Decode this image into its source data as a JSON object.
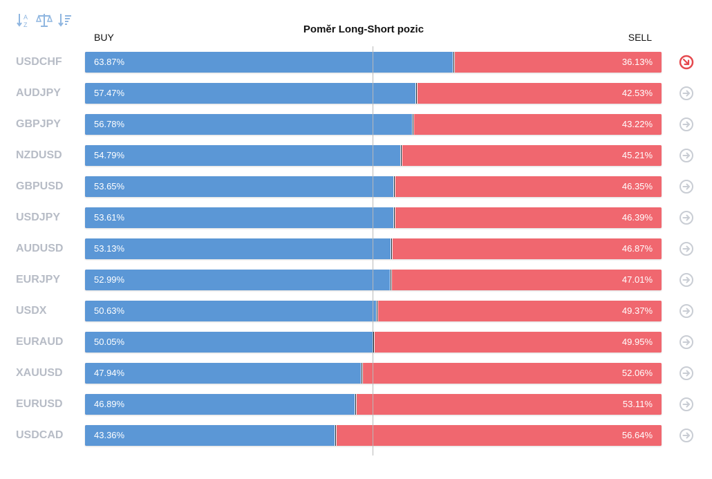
{
  "header": {
    "title": "Poměr Long-Short pozic",
    "buy_label": "BUY",
    "sell_label": "SELL"
  },
  "toolbar": {
    "sort_az_icon": "sort-alpha-icon",
    "balance_icon": "balance-scale-icon",
    "sort_desc_icon": "sort-descending-icon"
  },
  "colors": {
    "buy": "#5b97d6",
    "sell": "#f0676f",
    "pair_text": "#b7bcc6",
    "active_button": "#e5484d",
    "inactive_button": "#c9cdd4"
  },
  "rows": [
    {
      "pair": "USDCHF",
      "buy": "63.87%",
      "sell": "36.13%",
      "buy_value": 63.87,
      "active": true
    },
    {
      "pair": "AUDJPY",
      "buy": "57.47%",
      "sell": "42.53%",
      "buy_value": 57.47,
      "active": false
    },
    {
      "pair": "GBPJPY",
      "buy": "56.78%",
      "sell": "43.22%",
      "buy_value": 56.78,
      "active": false
    },
    {
      "pair": "NZDUSD",
      "buy": "54.79%",
      "sell": "45.21%",
      "buy_value": 54.79,
      "active": false
    },
    {
      "pair": "GBPUSD",
      "buy": "53.65%",
      "sell": "46.35%",
      "buy_value": 53.65,
      "active": false
    },
    {
      "pair": "USDJPY",
      "buy": "53.61%",
      "sell": "46.39%",
      "buy_value": 53.61,
      "active": false
    },
    {
      "pair": "AUDUSD",
      "buy": "53.13%",
      "sell": "46.87%",
      "buy_value": 53.13,
      "active": false
    },
    {
      "pair": "EURJPY",
      "buy": "52.99%",
      "sell": "47.01%",
      "buy_value": 52.99,
      "active": false
    },
    {
      "pair": "USDX",
      "buy": "50.63%",
      "sell": "49.37%",
      "buy_value": 50.63,
      "active": false
    },
    {
      "pair": "EURAUD",
      "buy": "50.05%",
      "sell": "49.95%",
      "buy_value": 50.05,
      "active": false
    },
    {
      "pair": "XAUUSD",
      "buy": "47.94%",
      "sell": "52.06%",
      "buy_value": 47.94,
      "active": false
    },
    {
      "pair": "EURUSD",
      "buy": "46.89%",
      "sell": "53.11%",
      "buy_value": 46.89,
      "active": false
    },
    {
      "pair": "USDCAD",
      "buy": "43.36%",
      "sell": "56.64%",
      "buy_value": 43.36,
      "active": false
    }
  ]
}
